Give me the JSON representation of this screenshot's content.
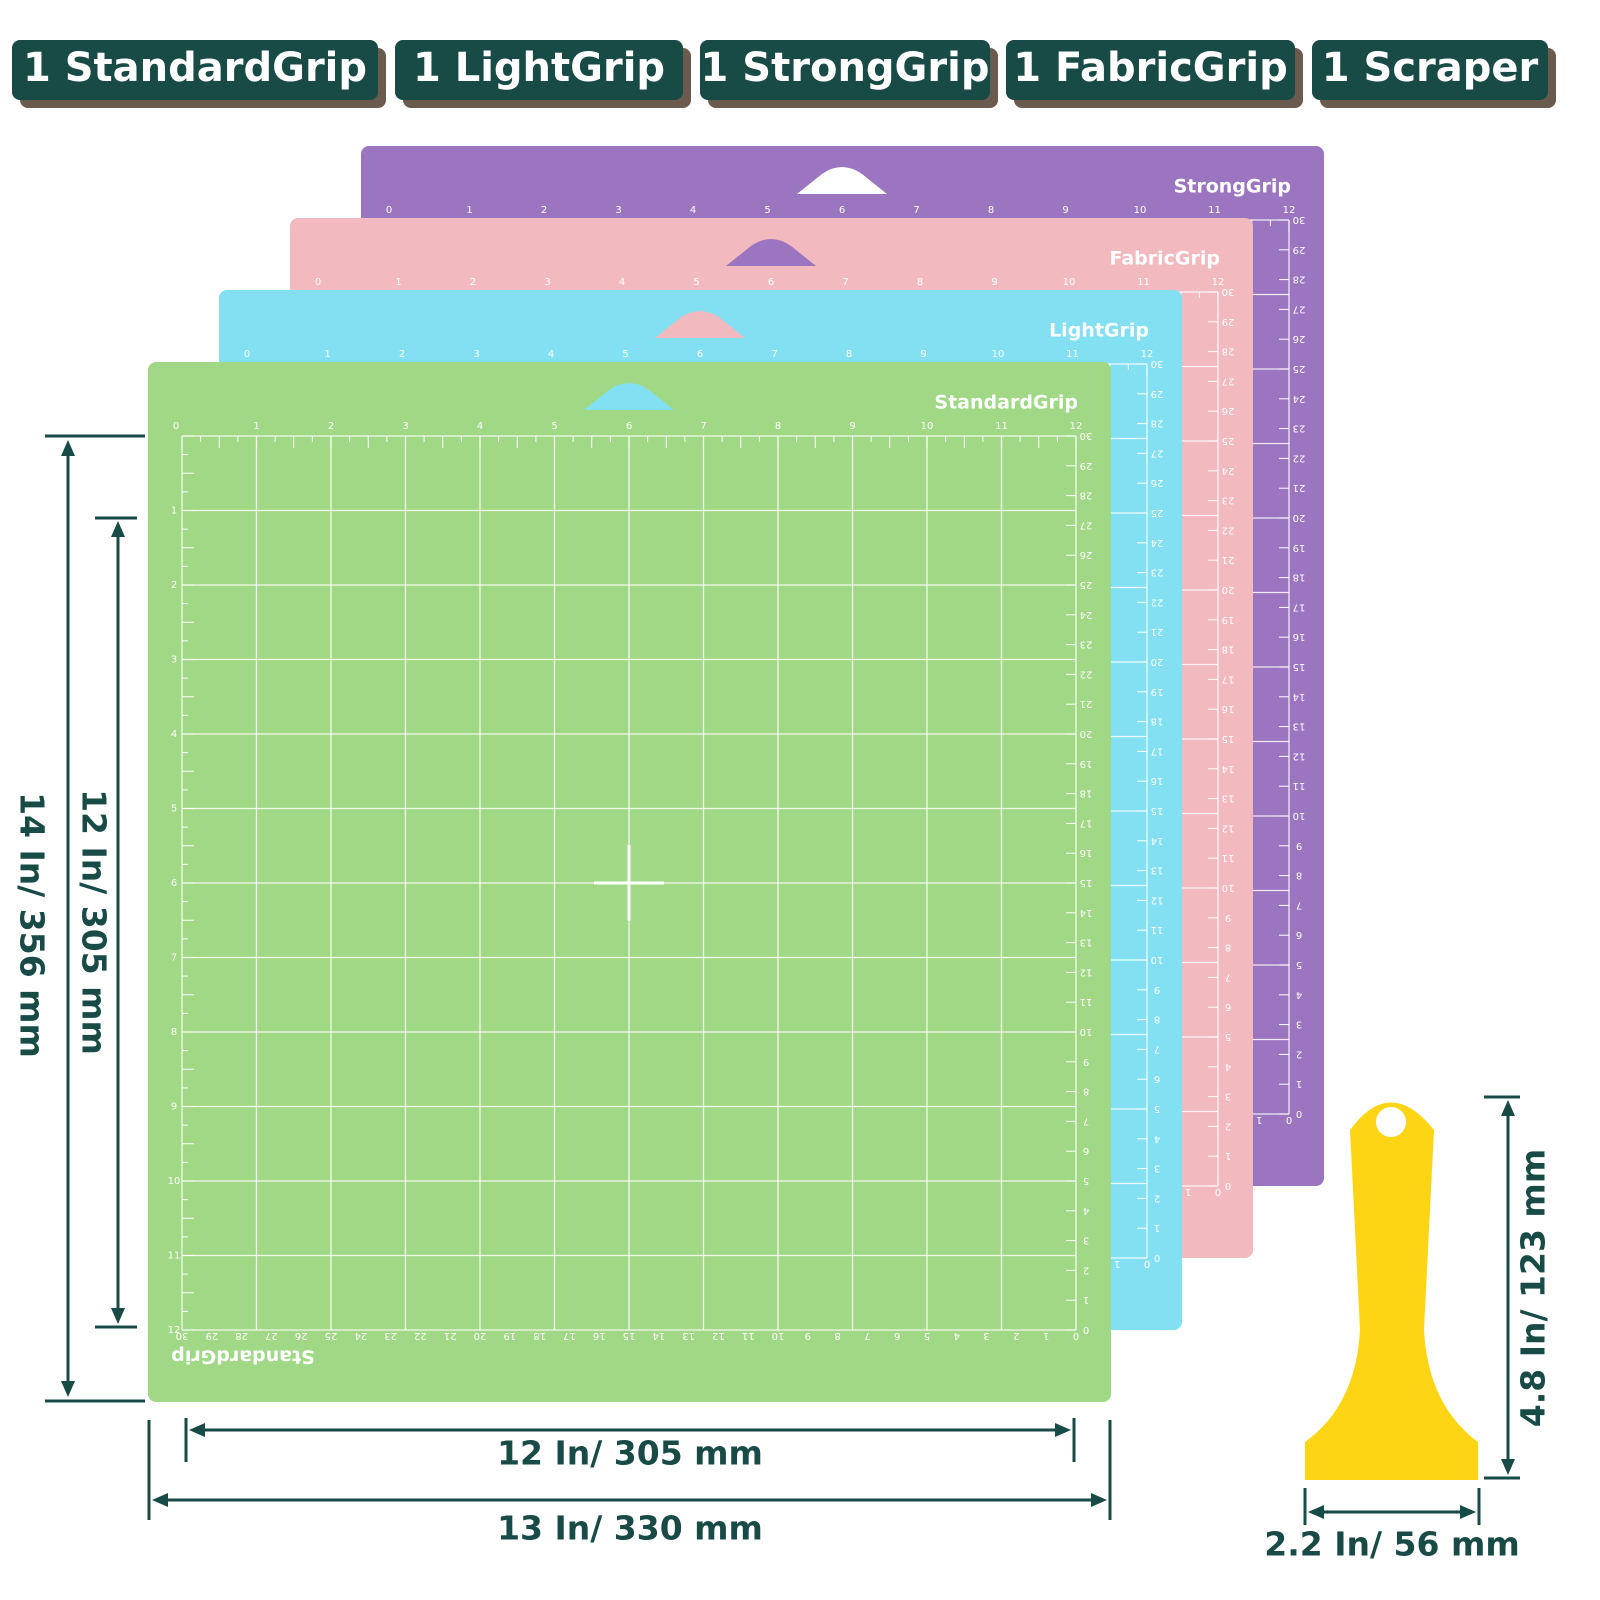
{
  "badges": [
    "1 StandardGrip",
    "1 LightGrip",
    "1 StrongGrip",
    "1 FabricGrip",
    "1 Scraper"
  ],
  "mats": [
    {
      "name": "StrongGrip",
      "color": "#9b75c0"
    },
    {
      "name": "FabricGrip",
      "color": "#f2b9bf"
    },
    {
      "name": "LightGrip",
      "color": "#83e0f2"
    },
    {
      "name": "StandardGrip",
      "color": "#a1d886"
    }
  ],
  "ruler": {
    "inches": [
      0,
      1,
      2,
      3,
      4,
      5,
      6,
      7,
      8,
      9,
      10,
      11,
      12
    ],
    "cm": [
      0,
      1,
      2,
      3,
      4,
      5,
      6,
      7,
      8,
      9,
      10,
      11,
      12,
      13,
      14,
      15,
      16,
      17,
      18,
      19,
      20,
      21,
      22,
      23,
      24,
      25,
      26,
      27,
      28,
      29,
      30
    ]
  },
  "dimensions": {
    "mat_height": "14 In/ 356 mm",
    "grid_height": "12 In/ 305 mm",
    "grid_width": "12 In/ 305 mm",
    "mat_width": "13 In/ 330 mm",
    "scraper_height": "4.8 In/ 123 mm",
    "scraper_width": "2.2 In/ 56 mm"
  }
}
